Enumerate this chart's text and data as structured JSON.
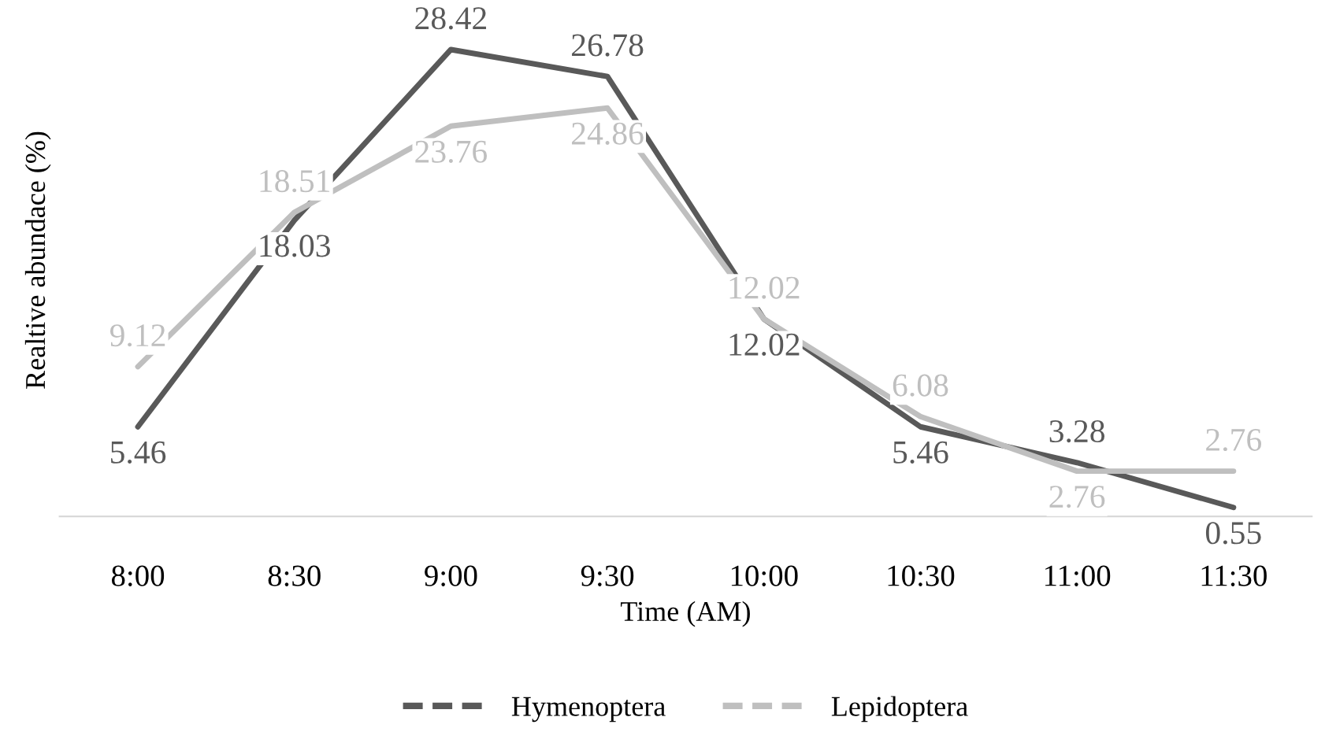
{
  "chart_data": {
    "type": "line",
    "xlabel": "Time (AM)",
    "ylabel": "Realtive abundace (%)",
    "categories": [
      "8:00",
      "8:30",
      "9:00",
      "9:30",
      "10:00",
      "10:30",
      "11:00",
      "11:30"
    ],
    "series": [
      {
        "name": "Hymenoptera",
        "color": "#595959",
        "values": [
          5.46,
          18.03,
          28.42,
          26.78,
          12.02,
          5.46,
          3.28,
          0.55
        ]
      },
      {
        "name": "Lepidoptera",
        "color": "#bfbfbf",
        "values": [
          9.12,
          18.51,
          23.76,
          24.86,
          12.02,
          6.08,
          2.76,
          2.76
        ]
      }
    ],
    "data_labels": true,
    "legend": "bottom",
    "tick_labels": "x",
    "grid": false,
    "marker": "none",
    "line_style": "solid"
  }
}
